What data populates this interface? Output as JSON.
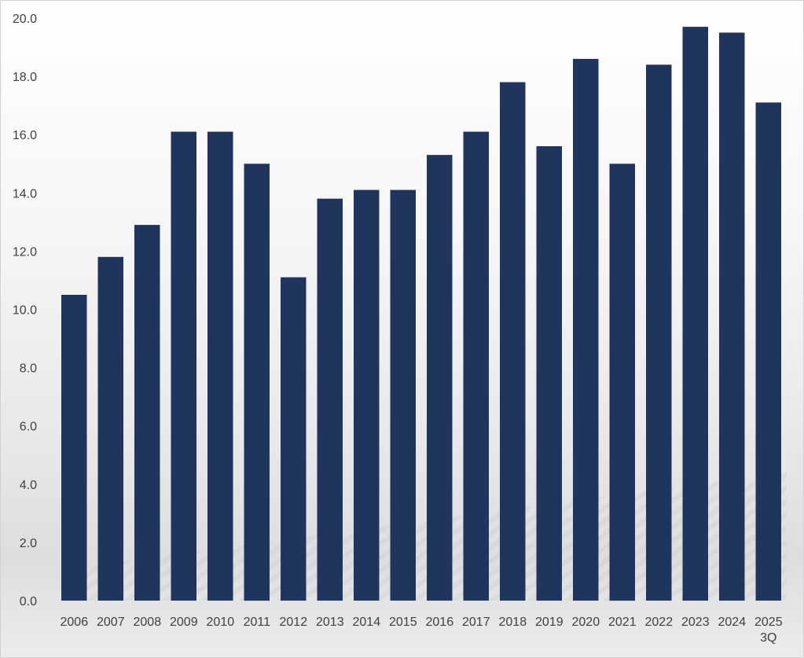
{
  "chart_data": {
    "type": "bar",
    "categories": [
      "2006",
      "2007",
      "2008",
      "2009",
      "2010",
      "2011",
      "2012",
      "2013",
      "2014",
      "2015",
      "2016",
      "2017",
      "2018",
      "2019",
      "2020",
      "2021",
      "2022",
      "2023",
      "2024",
      "2025\n3Q"
    ],
    "values": [
      10.5,
      11.8,
      12.9,
      16.1,
      16.1,
      15.0,
      11.1,
      13.8,
      14.1,
      14.1,
      15.3,
      16.1,
      17.8,
      15.6,
      18.6,
      15.0,
      18.4,
      19.7,
      19.5,
      17.1
    ],
    "yticks": [
      "0.0",
      "2.0",
      "4.0",
      "6.0",
      "8.0",
      "10.0",
      "12.0",
      "14.0",
      "16.0",
      "18.0",
      "20.0"
    ],
    "ylim": [
      0,
      20
    ],
    "title": "",
    "xlabel": "",
    "ylabel": "",
    "grid": false,
    "bar_color": "#1f355e"
  }
}
